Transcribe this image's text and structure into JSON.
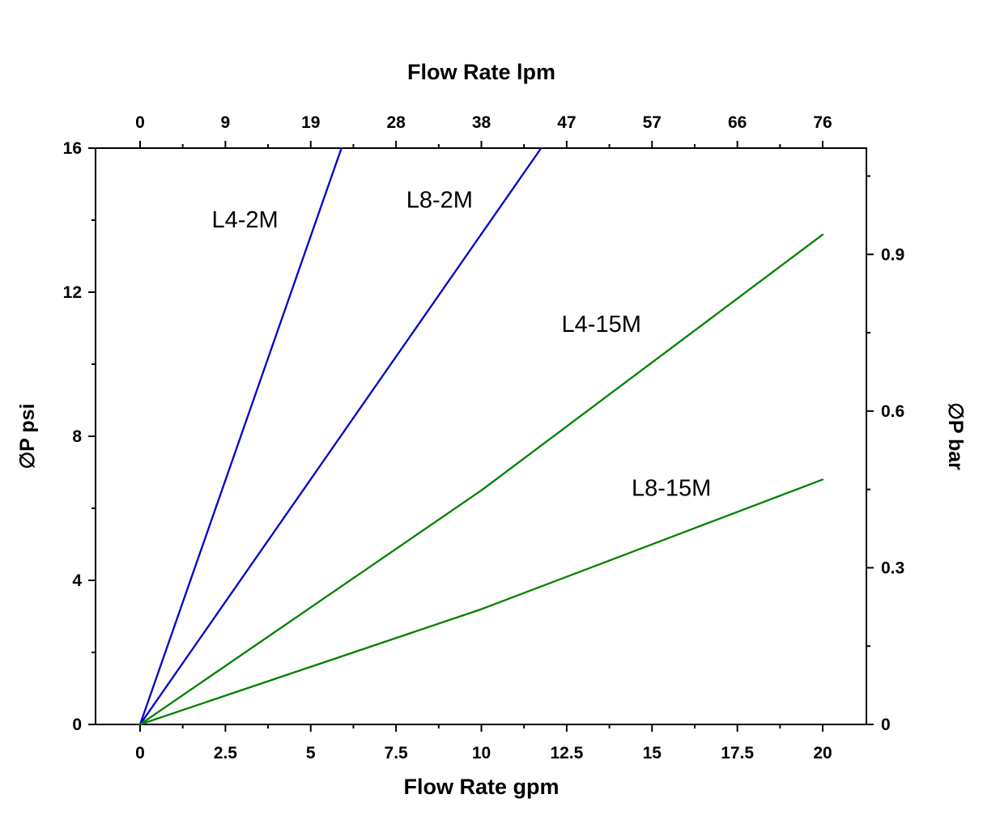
{
  "chart_data": {
    "type": "line",
    "title": "",
    "x_bottom": {
      "label": "Flow Rate gpm",
      "range": [
        0,
        20
      ],
      "ticks": [
        0,
        2.5,
        5,
        7.5,
        10,
        12.5,
        15,
        17.5,
        20
      ],
      "tick_labels": [
        "0",
        "2.5",
        "5",
        "7.5",
        "10",
        "12.5",
        "15",
        "17.5",
        "20"
      ],
      "minor_ticks": [
        1.25,
        3.75,
        6.25,
        8.75,
        11.25,
        13.75,
        16.25,
        18.75
      ]
    },
    "x_top": {
      "label": "Flow Rate lpm",
      "tick_labels": [
        "0",
        "9",
        "19",
        "28",
        "38",
        "47",
        "57",
        "66",
        "76"
      ]
    },
    "y_left": {
      "label": "∅P psi",
      "range": [
        0,
        16
      ],
      "ticks": [
        0,
        4,
        8,
        12,
        16
      ],
      "tick_labels": [
        "0",
        "4",
        "8",
        "12",
        "16"
      ],
      "minor_ticks": [
        2,
        6,
        10,
        14
      ]
    },
    "y_right": {
      "label": "∅P bar",
      "ticks": [
        0,
        0.3,
        0.6,
        0.9
      ],
      "tick_labels": [
        "0",
        "0.3",
        "0.6",
        "0.9"
      ],
      "minor_ticks": [
        0.15,
        0.45,
        0.75,
        1.05
      ],
      "psi_per_bar": 14.5
    },
    "grid": false,
    "legend": "inline-labels",
    "series": [
      {
        "name": "L4-2M",
        "color": "#0000cc",
        "points": [
          [
            0,
            0
          ],
          [
            5.9,
            16
          ]
        ]
      },
      {
        "name": "L8-2M",
        "color": "#0000cc",
        "points": [
          [
            0,
            0
          ],
          [
            11.75,
            16
          ]
        ]
      },
      {
        "name": "L4-15M",
        "color": "#008000",
        "points": [
          [
            0,
            0
          ],
          [
            10,
            6.5
          ],
          [
            20,
            13.6
          ]
        ]
      },
      {
        "name": "L8-15M",
        "color": "#008000",
        "points": [
          [
            0,
            0
          ],
          [
            10,
            3.2
          ],
          [
            20,
            6.8
          ]
        ]
      }
    ],
    "annotations": [
      {
        "text": "L4-2M",
        "x": 2.1,
        "y": 13.8
      },
      {
        "text": "L8-2M",
        "x": 7.8,
        "y": 14.35
      },
      {
        "text": "L4-15M",
        "x": 12.35,
        "y": 10.9
      },
      {
        "text": "L8-15M",
        "x": 14.4,
        "y": 6.35
      }
    ],
    "colors": {
      "axis": "#000000",
      "text": "#000000",
      "blue_series": "#0000cc",
      "green_series": "#008000"
    }
  }
}
